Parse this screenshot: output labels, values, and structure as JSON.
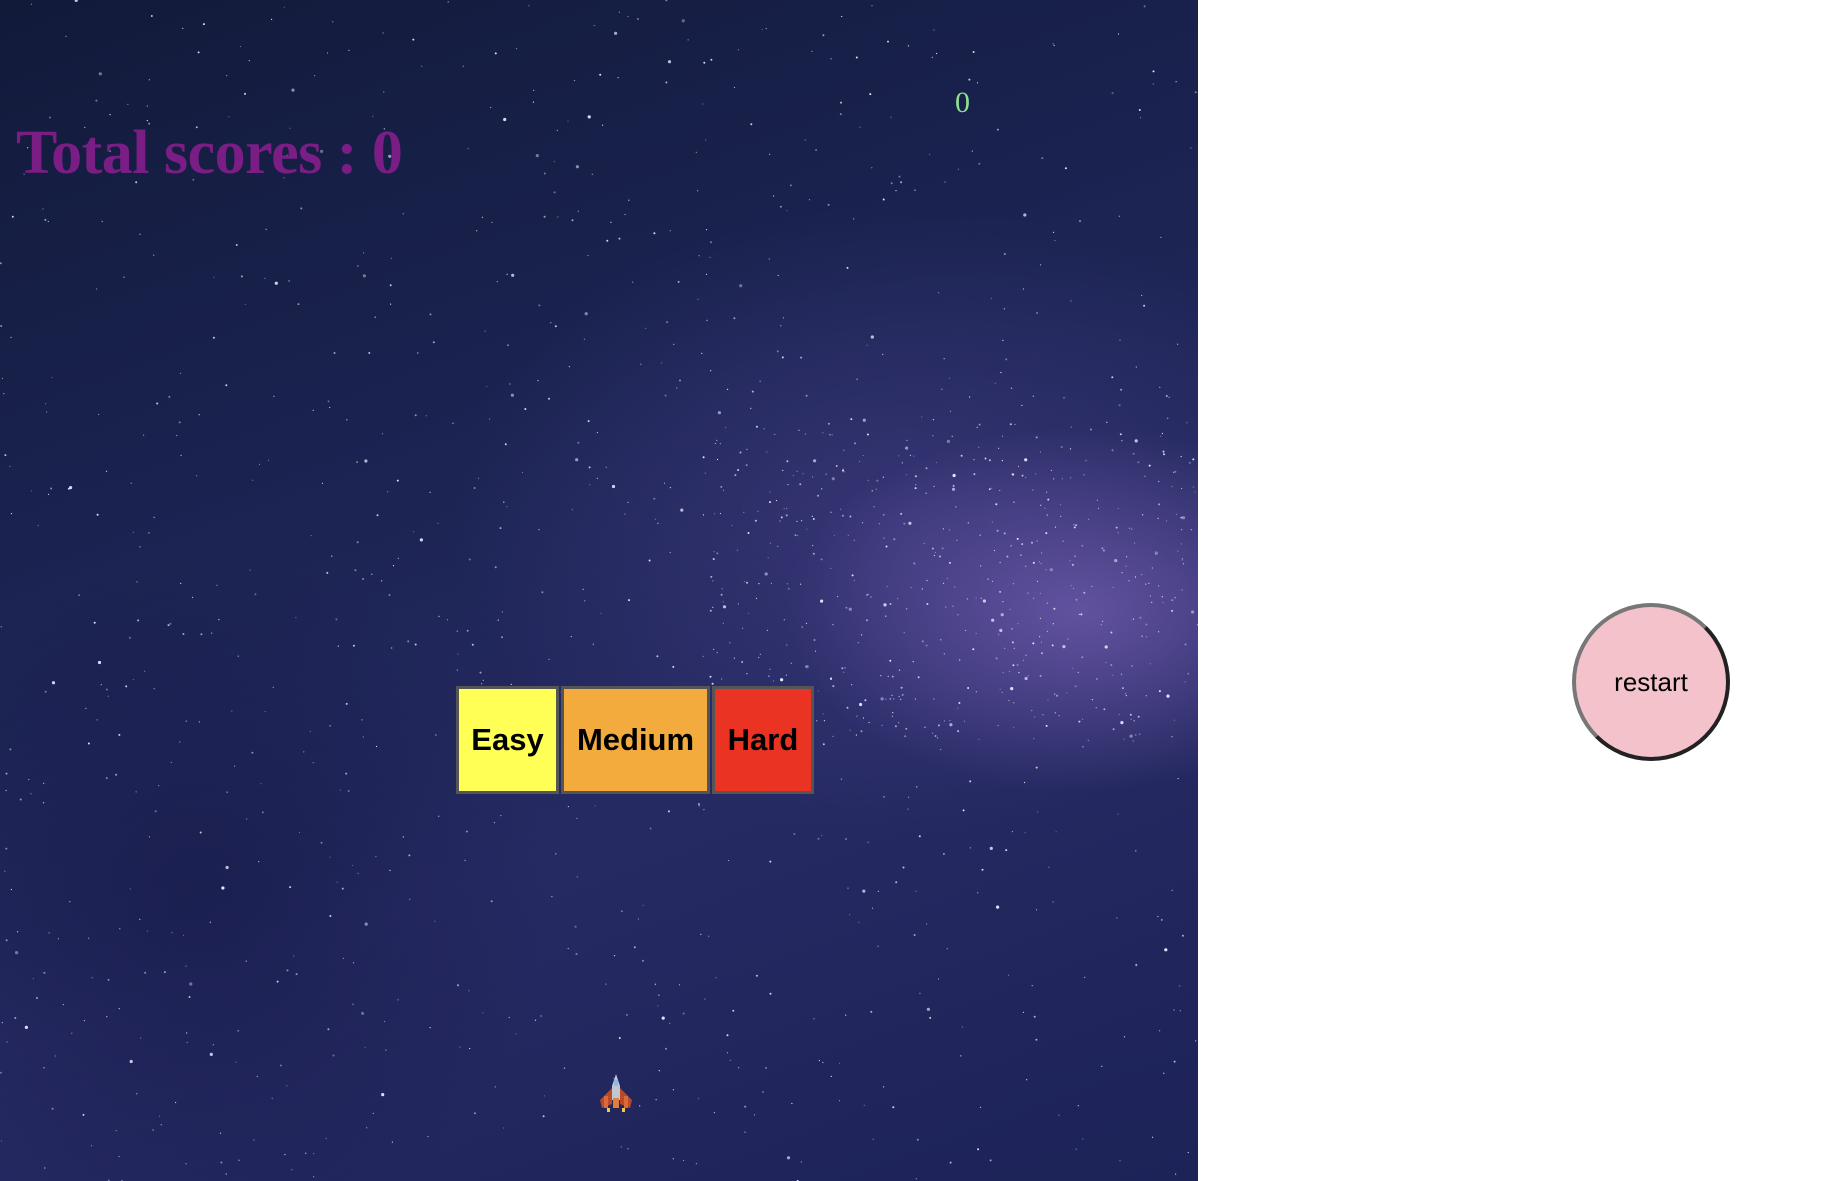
{
  "hud": {
    "total_scores_label": "Total scores : 0",
    "score_counter": "0"
  },
  "difficulty": {
    "easy_label": "Easy",
    "medium_label": "Medium",
    "hard_label": "Hard"
  },
  "controls": {
    "restart_label": "restart"
  },
  "colors": {
    "score_text": "#7a1e86",
    "counter_text": "#8ee08e",
    "easy": "#ffff55",
    "medium": "#f2ab3c",
    "hard": "#ea3323",
    "restart_bg": "#f4c2cb"
  },
  "icons": {
    "player": "spaceship-icon",
    "background": "starfield"
  }
}
